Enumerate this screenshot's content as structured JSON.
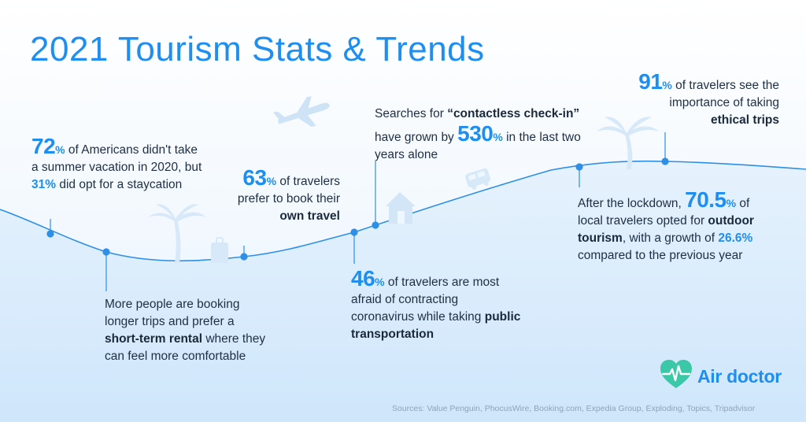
{
  "title": "2021 Tourism Stats & Trends",
  "stats": {
    "s72": {
      "num": "72",
      "pct": "%",
      "t1": " of Americans didn't take a summer vacation in 2020, but ",
      "hl": "31%",
      "t2": " did opt for a staycation"
    },
    "s63": {
      "num": "63",
      "pct": "%",
      "t1": " of travelers prefer to book their ",
      "bold": "own travel"
    },
    "s530": {
      "t1": "Searches for ",
      "bold": "“contactless check-in”",
      "t2": " have grown by ",
      "num": "530",
      "pct": "%",
      "t3": " in the last two years alone"
    },
    "s91": {
      "num": "91",
      "pct": "%",
      "t1": " of travelers see the importance of taking ",
      "bold": "ethical trips"
    },
    "long": {
      "t1": "More people are booking longer trips and prefer a ",
      "bold": "short-term rental",
      "t2": " where they can feel more comfortable"
    },
    "s46": {
      "num": "46",
      "pct": "%",
      "t1": " of travelers are most afraid of contracting coronavirus while taking ",
      "bold": "public transportation"
    },
    "s705": {
      "t1": "After the lockdown, ",
      "num": "70.5",
      "pct": "%",
      "t2": " of local travelers opted for ",
      "bold": "outdoor tourism",
      "t3": ", with a growth of ",
      "hl": "26.6%",
      "t4": " compared to the previous year"
    }
  },
  "logo": {
    "text": "Air doctor"
  },
  "sources": "Sources: Value Penguin, PhocusWire, Booking.com, Expedia Group, Exploding, Topics, Tripadvisor",
  "colors": {
    "accent": "#1e8ef0",
    "text": "#1e2f44",
    "curve": "#2d8fe6",
    "logo_heart": "#3bc8a8"
  },
  "icons": [
    "airplane-icon",
    "palm-tree-icon",
    "luggage-icon",
    "house-icon",
    "bus-icon",
    "heart-pulse-logo-icon"
  ]
}
